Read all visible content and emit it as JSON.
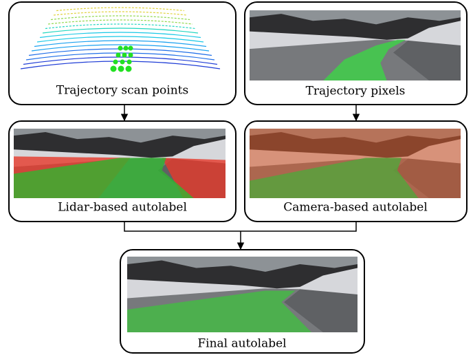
{
  "nodes": [
    {
      "label": "Trajectory scan points"
    },
    {
      "label": "Trajectory pixels"
    },
    {
      "label": "Lidar-based autolabel"
    },
    {
      "label": "Camera-based autolabel"
    },
    {
      "label": "Final autolabel"
    }
  ]
}
